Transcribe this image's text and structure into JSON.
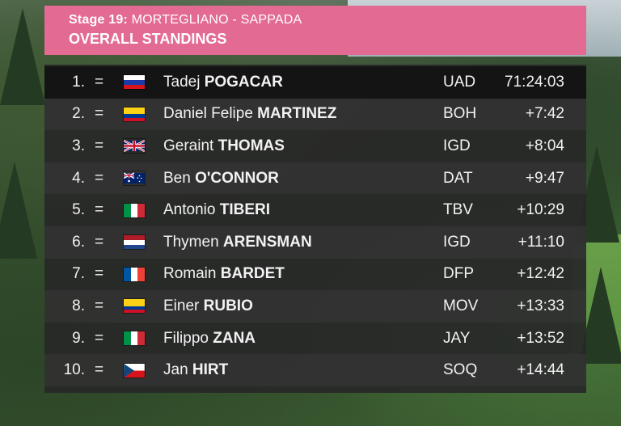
{
  "stage": {
    "label": "Stage 19:",
    "route": "MORTEGLIANO - SAPPADA",
    "title": "OVERALL STANDINGS"
  },
  "standings": [
    {
      "pos": "1.",
      "change": "=",
      "first": "Tadej",
      "last": "POGACAR",
      "team": "UAD",
      "time": "71:24:03",
      "flag": "slovenia-flag"
    },
    {
      "pos": "2.",
      "change": "=",
      "first": "Daniel Felipe",
      "last": "MARTINEZ",
      "team": "BOH",
      "time": "+7:42",
      "flag": "colombia-flag"
    },
    {
      "pos": "3.",
      "change": "=",
      "first": "Geraint",
      "last": "THOMAS",
      "team": "IGD",
      "time": "+8:04",
      "flag": "uk-flag"
    },
    {
      "pos": "4.",
      "change": "=",
      "first": "Ben",
      "last": "O'CONNOR",
      "team": "DAT",
      "time": "+9:47",
      "flag": "australia-flag"
    },
    {
      "pos": "5.",
      "change": "=",
      "first": "Antonio",
      "last": "TIBERI",
      "team": "TBV",
      "time": "+10:29",
      "flag": "italy-flag"
    },
    {
      "pos": "6.",
      "change": "=",
      "first": "Thymen",
      "last": "ARENSMAN",
      "team": "IGD",
      "time": "+11:10",
      "flag": "netherlands-flag"
    },
    {
      "pos": "7.",
      "change": "=",
      "first": "Romain",
      "last": "BARDET",
      "team": "DFP",
      "time": "+12:42",
      "flag": "france-flag"
    },
    {
      "pos": "8.",
      "change": "=",
      "first": "Einer",
      "last": "RUBIO",
      "team": "MOV",
      "time": "+13:33",
      "flag": "colombia-flag"
    },
    {
      "pos": "9.",
      "change": "=",
      "first": "Filippo",
      "last": "ZANA",
      "team": "JAY",
      "time": "+13:52",
      "flag": "italy-flag"
    },
    {
      "pos": "10.",
      "change": "=",
      "first": "Jan",
      "last": "HIRT",
      "team": "SOQ",
      "time": "+14:44",
      "flag": "czech-flag"
    }
  ],
  "colors": {
    "header_bg": "#e36a93",
    "table_bg": "#282828",
    "leader_row_bg": "#141414"
  }
}
